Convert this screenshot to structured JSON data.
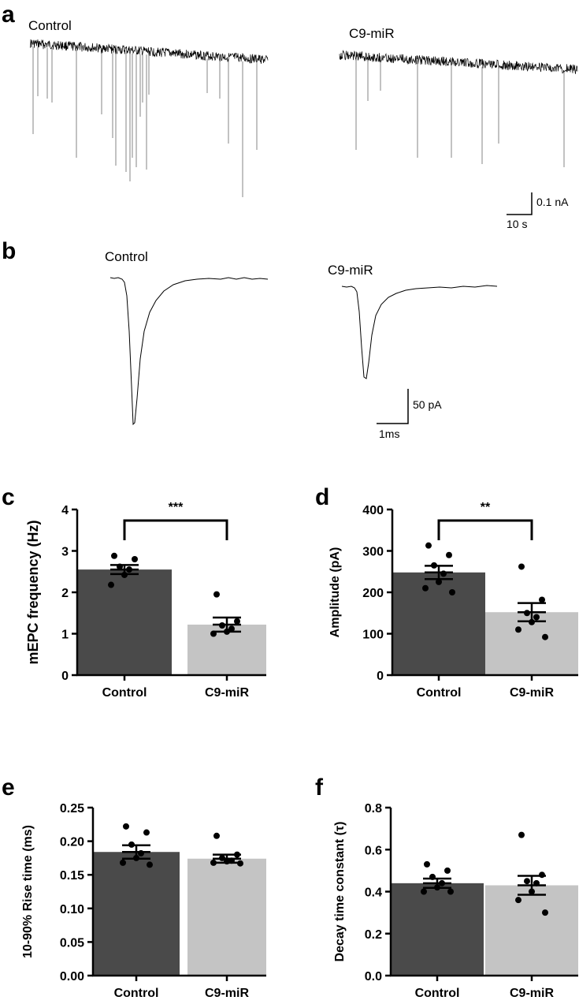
{
  "figure": {
    "panel_a": {
      "letter": "a",
      "trace_labels": [
        "Control",
        "C9-miR"
      ],
      "scale_y": "0.1 nA",
      "scale_x": "10 s"
    },
    "panel_b": {
      "letter": "b",
      "trace_labels": [
        "Control",
        "C9-miR"
      ],
      "scale_y": "50 pA",
      "scale_x": "1ms"
    }
  },
  "colors": {
    "control_bar": "#4a4a4a",
    "c9_bar": "#c4c4c4",
    "point": "#000000",
    "trace": "#000000"
  },
  "chart_data": [
    {
      "panel": "c",
      "type": "bar",
      "categories": [
        "Control",
        "C9-miR"
      ],
      "values": [
        2.55,
        1.22
      ],
      "sem": [
        0.11,
        0.17
      ],
      "points": [
        [
          2.88,
          2.8,
          2.62,
          2.55,
          2.42,
          2.18
        ],
        [
          1.95,
          1.3,
          1.2,
          1.12,
          1.05,
          1.0
        ]
      ],
      "ylabel": "mEPC frequency  (Hz)",
      "ylim": [
        0,
        4
      ],
      "yticks": [
        "0",
        "1",
        "2",
        "3",
        "4"
      ],
      "significance": "***"
    },
    {
      "panel": "d",
      "type": "bar",
      "categories": [
        "Control",
        "C9-miR"
      ],
      "values": [
        248,
        152
      ],
      "sem": [
        16,
        22
      ],
      "points": [
        [
          313,
          290,
          265,
          245,
          225,
          210,
          200
        ],
        [
          262,
          182,
          150,
          140,
          128,
          110,
          92
        ]
      ],
      "ylabel": "Amplitude (pA)",
      "ylim": [
        0,
        400
      ],
      "yticks": [
        "0",
        "100",
        "200",
        "300",
        "400"
      ],
      "significance": "**"
    },
    {
      "panel": "e",
      "type": "bar",
      "categories": [
        "Control",
        "C9-miR"
      ],
      "values": [
        0.184,
        0.174
      ],
      "sem": [
        0.01,
        0.006
      ],
      "points": [
        [
          0.222,
          0.213,
          0.195,
          0.182,
          0.175,
          0.168,
          0.165
        ],
        [
          0.208,
          0.18,
          0.175,
          0.171,
          0.17,
          0.168,
          0.167
        ]
      ],
      "ylabel": "10-90% Rise time (ms)",
      "ylim": [
        0,
        0.25
      ],
      "yticks": [
        "0.00",
        "0.05",
        "0.10",
        "0.15",
        "0.20",
        "0.25"
      ],
      "significance": ""
    },
    {
      "panel": "f",
      "type": "bar",
      "categories": [
        "Control",
        "C9-miR"
      ],
      "values": [
        0.44,
        0.43
      ],
      "sem": [
        0.022,
        0.045
      ],
      "points": [
        [
          0.53,
          0.5,
          0.47,
          0.44,
          0.42,
          0.4,
          0.4
        ],
        [
          0.67,
          0.48,
          0.45,
          0.44,
          0.4,
          0.36,
          0.3
        ]
      ],
      "ylabel": "Decay time constant (τ)",
      "ylim": [
        0,
        0.8
      ],
      "yticks": [
        "0.0",
        "0.2",
        "0.4",
        "0.6",
        "0.8"
      ],
      "significance": ""
    }
  ]
}
